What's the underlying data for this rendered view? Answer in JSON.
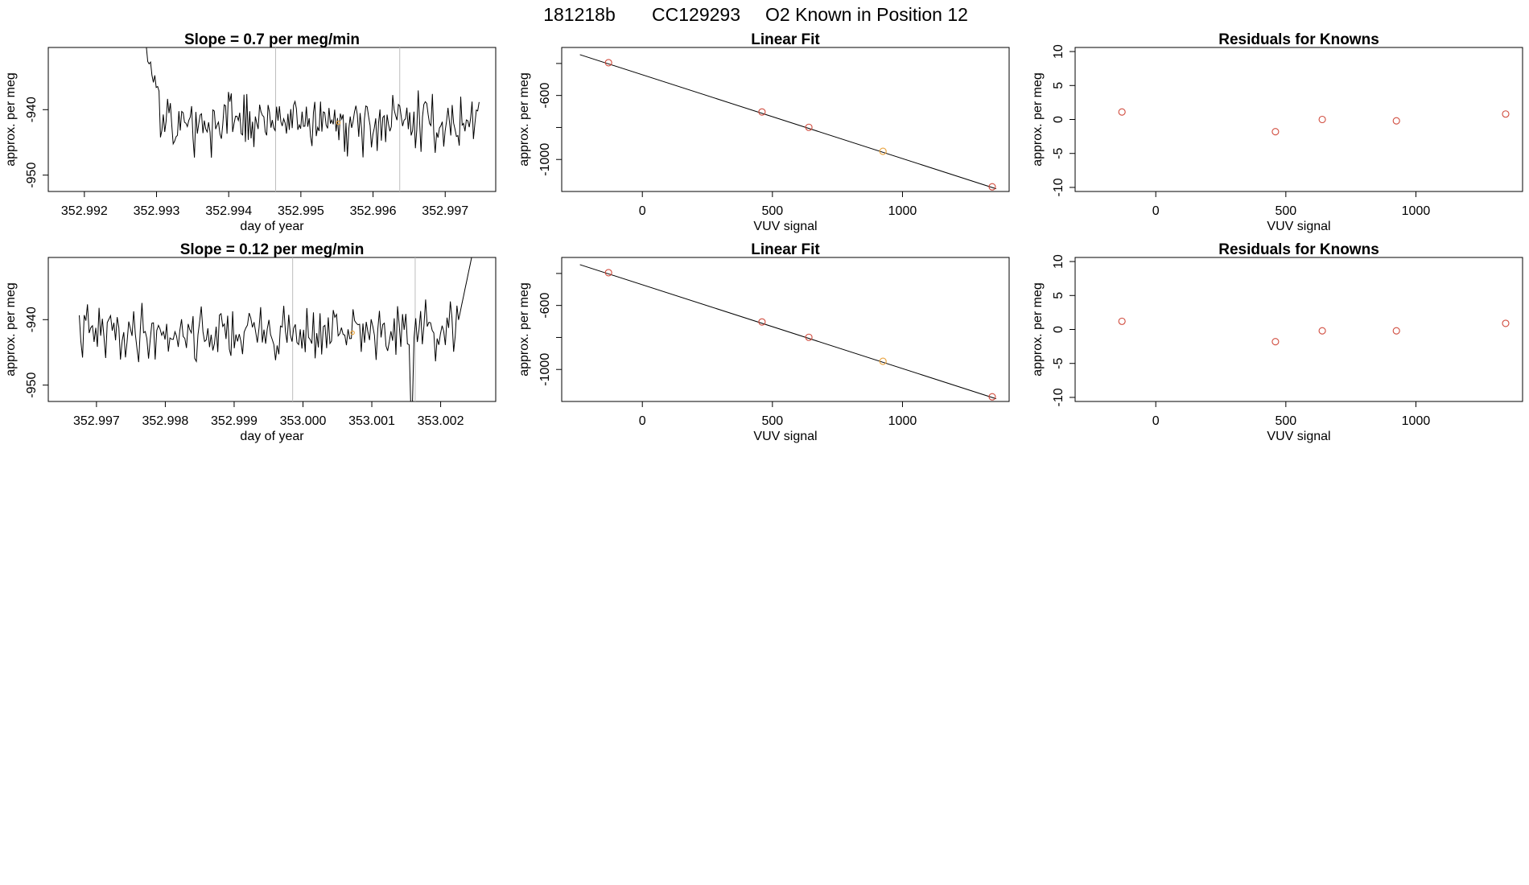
{
  "figure_title": {
    "run": "181218b",
    "tank": "CC129293",
    "label": "O2 Known in Position  12"
  },
  "colors": {
    "series": "#000000",
    "gridline": "#bdbdbd",
    "known_point": "#d04a3c",
    "sample_point": "#e8a13a"
  },
  "chart_data": [
    {
      "id": "ts1",
      "type": "line",
      "title": "Slope =  0.7  per meg/min",
      "xlabel": "day of year",
      "ylabel": "approx. per meg",
      "xlim": [
        352.9915,
        352.9977
      ],
      "ylim": [
        -952.5,
        -930.5
      ],
      "xticks": [
        "352.992",
        "352.993",
        "352.994",
        "352.995",
        "352.996",
        "352.997"
      ],
      "xtick_values": [
        352.992,
        352.993,
        352.994,
        352.995,
        352.996,
        352.997
      ],
      "yticks": [
        "-940",
        "-950"
      ],
      "ytick_values": [
        -940,
        -950
      ],
      "vlines": [
        352.99465,
        352.99637
      ],
      "start": [
        352.99276,
        -928.0
      ],
      "drop_to": -936.5,
      "x_end": 352.99747,
      "mean": -942.0,
      "amplitude": 3.6,
      "seed": 17,
      "marker": {
        "x": 352.99552,
        "y": -942.0
      }
    },
    {
      "id": "fit1",
      "type": "scatter",
      "title": "Linear Fit",
      "xlabel": "VUV signal",
      "ylabel": "approx. per meg",
      "xlim": [
        -310,
        1410
      ],
      "ylim": [
        -1200,
        -300
      ],
      "xticks": [
        "0",
        "500",
        "1000"
      ],
      "xtick_values": [
        0,
        500,
        1000
      ],
      "yticks": [
        "-600",
        "-1000"
      ],
      "ytick_values": [
        -600,
        -1000
      ],
      "extra_yticks": [
        -400,
        -800
      ],
      "line": {
        "x": [
          -240,
          1360
        ],
        "y": [
          -345,
          -1183
        ]
      },
      "points": [
        {
          "x": -130,
          "y": -395,
          "kind": "known"
        },
        {
          "x": 460,
          "y": -703,
          "kind": "known"
        },
        {
          "x": 640,
          "y": -799,
          "kind": "known"
        },
        {
          "x": 925,
          "y": -949,
          "kind": "sample"
        },
        {
          "x": 1345,
          "y": -1171,
          "kind": "known"
        }
      ]
    },
    {
      "id": "res1",
      "type": "scatter",
      "title": "Residuals for Knowns",
      "xlabel": "VUV signal",
      "ylabel": "approx. per meg",
      "xlim": [
        -310,
        1410
      ],
      "ylim": [
        -10.6,
        10.6
      ],
      "xticks": [
        "0",
        "500",
        "1000"
      ],
      "xtick_values": [
        0,
        500,
        1000
      ],
      "yticks": [
        "10",
        "5",
        "0",
        "-5",
        "-10"
      ],
      "ytick_values": [
        10,
        5,
        0,
        -5,
        -10
      ],
      "points": [
        {
          "x": -130,
          "y": 1.1,
          "kind": "known"
        },
        {
          "x": 460,
          "y": -1.8,
          "kind": "known"
        },
        {
          "x": 640,
          "y": 0.0,
          "kind": "known"
        },
        {
          "x": 925,
          "y": -0.2,
          "kind": "known"
        },
        {
          "x": 1345,
          "y": 0.8,
          "kind": "known"
        }
      ]
    },
    {
      "id": "ts2",
      "type": "line",
      "title": "Slope =  0.12  per meg/min",
      "xlabel": "day of year",
      "ylabel": "approx. per meg",
      "xlim": [
        352.9963,
        353.0028
      ],
      "ylim": [
        -952.5,
        -930.5
      ],
      "xticks": [
        "352.997",
        "352.998",
        "352.999",
        "353.000",
        "353.001",
        "353.002"
      ],
      "xtick_values": [
        352.997,
        352.998,
        352.999,
        353.0,
        353.001,
        353.002
      ],
      "yticks": [
        "-940",
        "-950"
      ],
      "ytick_values": [
        -940,
        -950
      ],
      "vlines": [
        352.99985,
        353.00163
      ],
      "x_start": 352.99675,
      "x_end": 353.0025,
      "mean": -942.0,
      "amplitude": 3.6,
      "seed": 41,
      "dip": {
        "x": 353.00158,
        "y": -953.0
      },
      "rise_to": -928.0,
      "marker": {
        "x": 353.00072,
        "y": -942.0
      }
    },
    {
      "id": "fit2",
      "type": "scatter",
      "title": "Linear Fit",
      "xlabel": "VUV signal",
      "ylabel": "approx. per meg",
      "xlim": [
        -310,
        1410
      ],
      "ylim": [
        -1200,
        -300
      ],
      "xticks": [
        "0",
        "500",
        "1000"
      ],
      "xtick_values": [
        0,
        500,
        1000
      ],
      "yticks": [
        "-600",
        "-1000"
      ],
      "ytick_values": [
        -600,
        -1000
      ],
      "extra_yticks": [
        -400,
        -800
      ],
      "line": {
        "x": [
          -240,
          1360
        ],
        "y": [
          -345,
          -1183
        ]
      },
      "points": [
        {
          "x": -130,
          "y": -395,
          "kind": "known"
        },
        {
          "x": 460,
          "y": -703,
          "kind": "known"
        },
        {
          "x": 640,
          "y": -799,
          "kind": "known"
        },
        {
          "x": 925,
          "y": -949,
          "kind": "sample"
        },
        {
          "x": 1345,
          "y": -1171,
          "kind": "known"
        }
      ]
    },
    {
      "id": "res2",
      "type": "scatter",
      "title": "Residuals for Knowns",
      "xlabel": "VUV signal",
      "ylabel": "approx. per meg",
      "xlim": [
        -310,
        1410
      ],
      "ylim": [
        -10.6,
        10.6
      ],
      "xticks": [
        "0",
        "500",
        "1000"
      ],
      "xtick_values": [
        0,
        500,
        1000
      ],
      "yticks": [
        "10",
        "5",
        "0",
        "-5",
        "-10"
      ],
      "ytick_values": [
        10,
        5,
        0,
        -5,
        -10
      ],
      "points": [
        {
          "x": -130,
          "y": 1.2,
          "kind": "known"
        },
        {
          "x": 460,
          "y": -1.8,
          "kind": "known"
        },
        {
          "x": 640,
          "y": -0.2,
          "kind": "known"
        },
        {
          "x": 925,
          "y": -0.2,
          "kind": "known"
        },
        {
          "x": 1345,
          "y": 0.9,
          "kind": "known"
        }
      ]
    }
  ]
}
